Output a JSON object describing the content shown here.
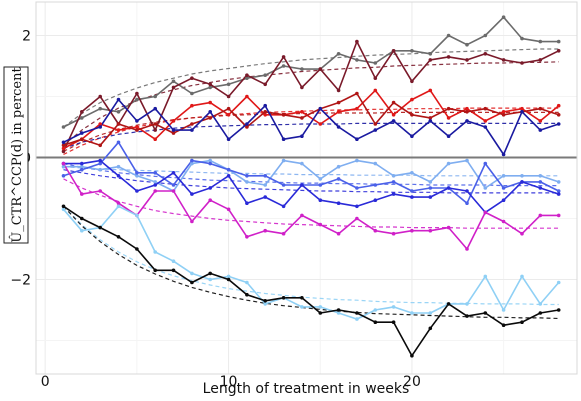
{
  "chart_data": {
    "type": "line",
    "xlabel": "Length of treatment in weeks",
    "ylabel": "Û_CTR^CCP(d) in percent",
    "xlim": [
      -0.5,
      29
    ],
    "ylim": [
      -3.55,
      2.55
    ],
    "x_ticks": [
      0,
      10,
      20
    ],
    "y_ticks": [
      -2,
      0,
      2
    ],
    "grid": true,
    "legend": "none",
    "x": [
      1,
      2,
      3,
      4,
      5,
      6,
      7,
      8,
      9,
      10,
      11,
      12,
      13,
      14,
      15,
      16,
      17,
      18,
      19,
      20,
      21,
      22,
      23,
      24,
      25,
      26,
      27,
      28
    ],
    "series": [
      {
        "color": "#6b6b6b",
        "style": "solid",
        "values": [
          0.5,
          0.65,
          0.8,
          0.75,
          0.95,
          1.0,
          1.25,
          1.05,
          1.15,
          1.2,
          1.3,
          1.35,
          1.5,
          1.45,
          1.45,
          1.7,
          1.6,
          1.55,
          1.75,
          1.75,
          1.7,
          2.0,
          1.85,
          2.0,
          2.3,
          1.95,
          1.9,
          1.9
        ],
        "fit": [
          0.5,
          0.72,
          0.9,
          1.03,
          1.14,
          1.23,
          1.3,
          1.37,
          1.42,
          1.46,
          1.5,
          1.54,
          1.57,
          1.6,
          1.62,
          1.64,
          1.66,
          1.68,
          1.69,
          1.7,
          1.72,
          1.73,
          1.74,
          1.75,
          1.76,
          1.77,
          1.78,
          1.78
        ]
      },
      {
        "color": "#7a1a2a",
        "style": "solid",
        "values": [
          0.1,
          0.75,
          1.0,
          0.55,
          1.05,
          0.45,
          1.15,
          1.3,
          1.2,
          1.0,
          1.35,
          1.2,
          1.65,
          1.15,
          1.45,
          1.1,
          1.9,
          1.3,
          1.75,
          1.25,
          1.6,
          1.65,
          1.6,
          1.7,
          1.6,
          1.55,
          1.6,
          1.75
        ],
        "fit": [
          0.2,
          0.45,
          0.65,
          0.81,
          0.93,
          1.03,
          1.11,
          1.18,
          1.23,
          1.28,
          1.32,
          1.35,
          1.38,
          1.41,
          1.43,
          1.45,
          1.47,
          1.48,
          1.5,
          1.51,
          1.52,
          1.53,
          1.54,
          1.55,
          1.55,
          1.56,
          1.56,
          1.57
        ]
      },
      {
        "color": "#e01818",
        "style": "solid",
        "values": [
          0.15,
          0.3,
          0.55,
          0.45,
          0.5,
          0.3,
          0.6,
          0.85,
          0.9,
          0.7,
          1.0,
          0.7,
          0.7,
          0.75,
          0.55,
          0.75,
          0.8,
          1.1,
          0.7,
          0.95,
          1.1,
          0.65,
          0.8,
          0.6,
          0.75,
          0.8,
          0.6,
          0.85
        ],
        "fit": [
          0.05,
          0.2,
          0.32,
          0.42,
          0.5,
          0.56,
          0.61,
          0.65,
          0.68,
          0.7,
          0.72,
          0.74,
          0.75,
          0.76,
          0.77,
          0.78,
          0.78,
          0.79,
          0.79,
          0.8,
          0.8,
          0.8,
          0.81,
          0.81,
          0.81,
          0.81,
          0.81,
          0.81
        ]
      },
      {
        "color": "#b01515",
        "style": "solid",
        "values": [
          0.2,
          0.3,
          0.2,
          0.55,
          0.45,
          0.55,
          0.4,
          0.55,
          0.65,
          0.8,
          0.5,
          0.75,
          0.7,
          0.65,
          0.8,
          0.9,
          1.05,
          0.55,
          0.9,
          0.7,
          0.65,
          0.8,
          0.75,
          0.8,
          0.7,
          0.75,
          0.8,
          0.7
        ],
        "fit": [
          0.1,
          0.25,
          0.37,
          0.46,
          0.53,
          0.58,
          0.62,
          0.65,
          0.67,
          0.69,
          0.7,
          0.71,
          0.72,
          0.72,
          0.73,
          0.73,
          0.73,
          0.73,
          0.74,
          0.74,
          0.74,
          0.74,
          0.74,
          0.74,
          0.74,
          0.74,
          0.74,
          0.74
        ]
      },
      {
        "color": "#1a1aa0",
        "style": "solid",
        "values": [
          0.25,
          0.4,
          0.5,
          0.95,
          0.6,
          0.8,
          0.45,
          0.45,
          0.75,
          0.3,
          0.55,
          0.85,
          0.3,
          0.35,
          0.8,
          0.5,
          0.3,
          0.45,
          0.6,
          0.35,
          0.6,
          0.35,
          0.6,
          0.5,
          0.05,
          0.75,
          0.45,
          0.55
        ],
        "fit": [
          0.15,
          0.25,
          0.32,
          0.38,
          0.42,
          0.45,
          0.48,
          0.5,
          0.51,
          0.52,
          0.53,
          0.54,
          0.54,
          0.55,
          0.55,
          0.55,
          0.56,
          0.56,
          0.56,
          0.56,
          0.56,
          0.56,
          0.56,
          0.56,
          0.56,
          0.56,
          0.56,
          0.56
        ]
      },
      {
        "color": "#7faef0",
        "style": "solid",
        "values": [
          -0.15,
          -0.15,
          -0.2,
          -0.15,
          -0.3,
          -0.4,
          -0.55,
          -0.1,
          -0.05,
          -0.2,
          -0.4,
          -0.45,
          -0.05,
          -0.1,
          -0.35,
          -0.15,
          -0.05,
          -0.1,
          -0.3,
          -0.25,
          -0.4,
          -0.1,
          -0.05,
          -0.5,
          -0.3,
          -0.3,
          -0.3,
          -0.4
        ],
        "fit": [
          -0.15,
          -0.17,
          -0.19,
          -0.2,
          -0.21,
          -0.22,
          -0.23,
          -0.24,
          -0.25,
          -0.26,
          -0.26,
          -0.27,
          -0.27,
          -0.28,
          -0.28,
          -0.28,
          -0.29,
          -0.29,
          -0.29,
          -0.29,
          -0.3,
          -0.3,
          -0.3,
          -0.3,
          -0.3,
          -0.3,
          -0.3,
          -0.3
        ]
      },
      {
        "color": "#4a60e8",
        "style": "solid",
        "values": [
          -0.3,
          -0.2,
          -0.1,
          0.25,
          -0.25,
          -0.25,
          -0.45,
          -0.05,
          -0.1,
          -0.2,
          -0.3,
          -0.3,
          -0.45,
          -0.45,
          -0.45,
          -0.35,
          -0.5,
          -0.45,
          -0.4,
          -0.55,
          -0.5,
          -0.5,
          -0.75,
          -0.1,
          -0.5,
          -0.4,
          -0.4,
          -0.55
        ],
        "fit": [
          -0.1,
          -0.16,
          -0.21,
          -0.25,
          -0.28,
          -0.31,
          -0.33,
          -0.35,
          -0.37,
          -0.38,
          -0.39,
          -0.4,
          -0.41,
          -0.42,
          -0.42,
          -0.43,
          -0.43,
          -0.44,
          -0.44,
          -0.44,
          -0.45,
          -0.45,
          -0.45,
          -0.45,
          -0.46,
          -0.46,
          -0.46,
          -0.46
        ]
      },
      {
        "color": "#2a2ad8",
        "style": "solid",
        "values": [
          -0.1,
          -0.1,
          -0.05,
          -0.3,
          -0.55,
          -0.45,
          -0.25,
          -0.6,
          -0.5,
          -0.3,
          -0.75,
          -0.65,
          -0.8,
          -0.45,
          -0.7,
          -0.75,
          -0.8,
          -0.7,
          -0.6,
          -0.65,
          -0.65,
          -0.5,
          -0.55,
          -0.9,
          -0.7,
          -0.4,
          -0.5,
          -0.6
        ],
        "fit": [
          -0.2,
          -0.25,
          -0.3,
          -0.34,
          -0.38,
          -0.41,
          -0.44,
          -0.46,
          -0.48,
          -0.5,
          -0.51,
          -0.52,
          -0.53,
          -0.54,
          -0.55,
          -0.55,
          -0.56,
          -0.56,
          -0.57,
          -0.57,
          -0.57,
          -0.58,
          -0.58,
          -0.58,
          -0.58,
          -0.58,
          -0.58,
          -0.58
        ]
      },
      {
        "color": "#d020c8",
        "style": "solid",
        "values": [
          -0.1,
          -0.6,
          -0.55,
          -0.75,
          -0.95,
          -0.55,
          -0.55,
          -1.05,
          -0.7,
          -0.85,
          -1.3,
          -1.2,
          -1.25,
          -0.95,
          -1.1,
          -1.25,
          -1.0,
          -1.2,
          -1.25,
          -1.2,
          -1.2,
          -1.15,
          -1.5,
          -0.9,
          -1.05,
          -1.25,
          -0.95,
          -0.95
        ],
        "fit": [
          -0.35,
          -0.5,
          -0.62,
          -0.72,
          -0.8,
          -0.87,
          -0.92,
          -0.96,
          -1.0,
          -1.03,
          -1.05,
          -1.07,
          -1.09,
          -1.1,
          -1.11,
          -1.12,
          -1.13,
          -1.14,
          -1.14,
          -1.15,
          -1.15,
          -1.15,
          -1.16,
          -1.16,
          -1.16,
          -1.16,
          -1.16,
          -1.16
        ]
      },
      {
        "color": "#8fd0f5",
        "style": "solid",
        "values": [
          -0.85,
          -1.2,
          -1.15,
          -0.8,
          -0.95,
          -1.55,
          -1.7,
          -1.9,
          -2.0,
          -1.95,
          -2.05,
          -2.4,
          -2.3,
          -2.45,
          -2.45,
          -2.55,
          -2.65,
          -2.5,
          -2.45,
          -2.55,
          -2.55,
          -2.4,
          -2.4,
          -1.95,
          -2.5,
          -1.95,
          -2.4,
          -2.05
        ],
        "fit": [
          -0.8,
          -1.1,
          -1.35,
          -1.55,
          -1.71,
          -1.84,
          -1.94,
          -2.02,
          -2.09,
          -2.15,
          -2.19,
          -2.23,
          -2.26,
          -2.29,
          -2.31,
          -2.33,
          -2.34,
          -2.36,
          -2.37,
          -2.38,
          -2.38,
          -2.39,
          -2.39,
          -2.4,
          -2.4,
          -2.4,
          -2.41,
          -2.41
        ]
      },
      {
        "color": "#0a0a0a",
        "style": "solid",
        "values": [
          -0.8,
          -1.0,
          -1.15,
          -1.3,
          -1.5,
          -1.85,
          -1.85,
          -2.05,
          -1.9,
          -2.0,
          -2.25,
          -2.35,
          -2.3,
          -2.3,
          -2.55,
          -2.5,
          -2.55,
          -2.7,
          -2.7,
          -3.25,
          -2.8,
          -2.4,
          -2.6,
          -2.55,
          -2.75,
          -2.7,
          -2.55,
          -2.5
        ],
        "fit": [
          -0.8,
          -1.12,
          -1.38,
          -1.59,
          -1.77,
          -1.91,
          -2.03,
          -2.13,
          -2.21,
          -2.28,
          -2.34,
          -2.39,
          -2.43,
          -2.46,
          -2.49,
          -2.52,
          -2.54,
          -2.56,
          -2.57,
          -2.58,
          -2.59,
          -2.6,
          -2.61,
          -2.62,
          -2.62,
          -2.63,
          -2.63,
          -2.64
        ]
      }
    ]
  }
}
